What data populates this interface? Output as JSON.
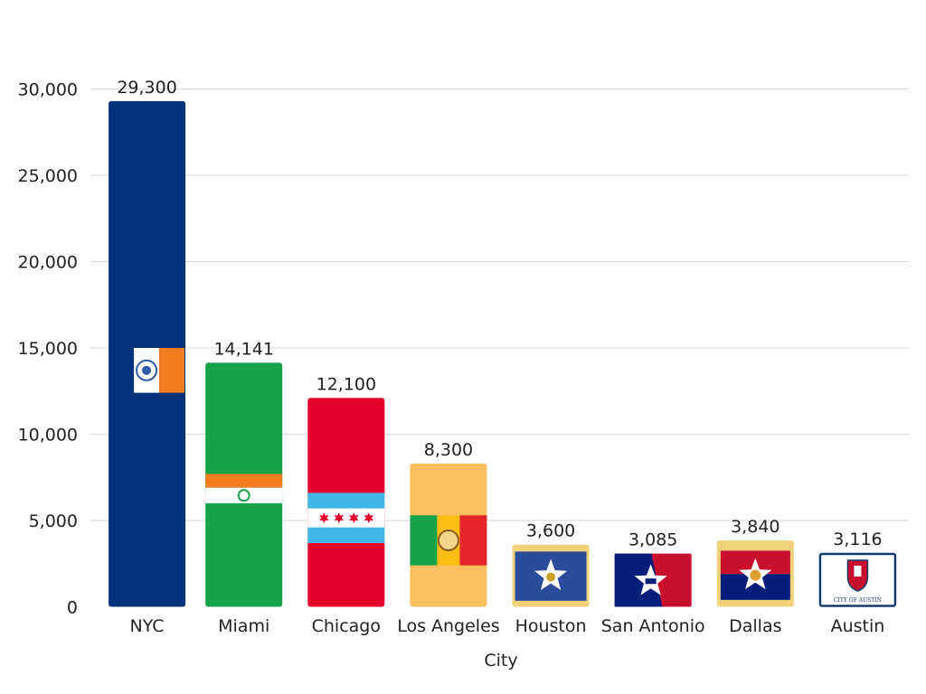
{
  "chart_data": {
    "type": "bar",
    "title": "",
    "xlabel": "City",
    "ylabel": "",
    "ylim": [
      0,
      30000
    ],
    "yticks": [
      0,
      5000,
      10000,
      15000,
      20000,
      25000,
      30000
    ],
    "ytick_labels": [
      "0",
      "5,000",
      "10,000",
      "15,000",
      "20,000",
      "25,000",
      "30,000"
    ],
    "grid": true,
    "legend": "none",
    "categories": [
      "NYC",
      "Miami",
      "Chicago",
      "Los Angeles",
      "Houston",
      "San Antonio",
      "Dallas",
      "Austin"
    ],
    "values": [
      29300,
      14141,
      12100,
      8300,
      3600,
      3085,
      3840,
      3116
    ],
    "value_labels": [
      "29,300",
      "14,141",
      "12,100",
      "8,300",
      "3,600",
      "3,085",
      "3,840",
      "3,116"
    ],
    "bar_styles": [
      "nyc-flag",
      "miami-flag",
      "chicago-flag",
      "los-angeles-flag",
      "houston-flag",
      "san-antonio-flag",
      "dallas-flag",
      "austin-flag"
    ],
    "seal_text": "CITY OF AUSTIN"
  }
}
